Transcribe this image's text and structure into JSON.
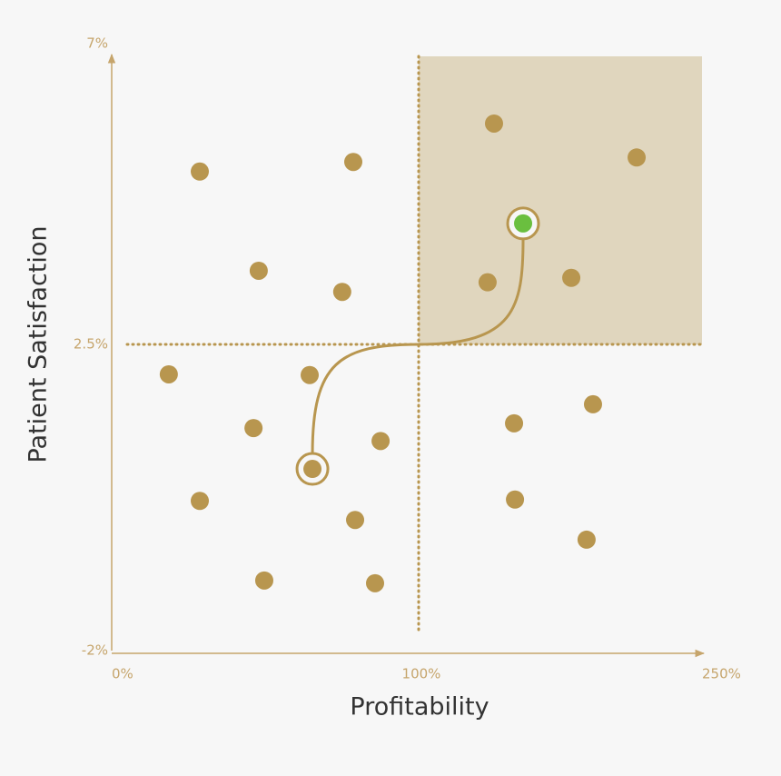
{
  "chart_data": {
    "type": "scatter",
    "xlabel": "Profitability",
    "ylabel": "Patient Satisfaction",
    "xlim": [
      0,
      250
    ],
    "ylim": [
      -2,
      7
    ],
    "xticks": [
      {
        "value": 0,
        "label": "0%"
      },
      {
        "value": 100,
        "label": "100%"
      },
      {
        "value": 250,
        "label": "250%"
      }
    ],
    "yticks": [
      {
        "value": -2,
        "label": "-2%"
      },
      {
        "value": 2.5,
        "label": "2.5%"
      },
      {
        "value": 7,
        "label": "7%"
      }
    ],
    "quadrant_color": "#e0d6be",
    "series": [
      {
        "color": "#b8964f",
        "x": [
          28.7,
          78.7,
          139.9,
          215.4,
          47.9,
          75.1,
          136.5,
          180.8,
          18.6,
          64.5,
          46.2,
          87.6,
          150.5,
          192.3,
          28.7,
          151.0,
          79.3,
          188.9,
          49.7,
          85.8
        ],
        "y": [
          5.2,
          5.35,
          5.95,
          5.42,
          3.65,
          3.32,
          3.47,
          3.54,
          2.06,
          2.05,
          1.27,
          1.08,
          1.34,
          1.62,
          0.2,
          0.22,
          -0.08,
          -0.37,
          -0.97,
          -1.01
        ]
      },
      {
        "color": "#b8964f",
        "ringed": true,
        "x": [
          65.4
        ],
        "y": [
          0.67
        ]
      },
      {
        "color": "#6abf3f",
        "ringed": true,
        "x": [
          155.3
        ],
        "y": [
          4.39
        ]
      }
    ]
  }
}
